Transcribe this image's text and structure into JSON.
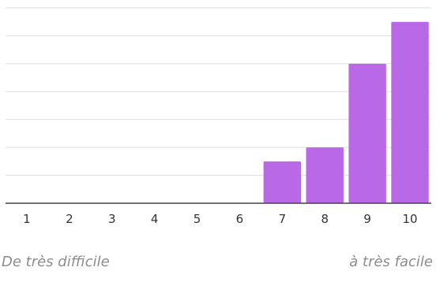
{
  "chart_data": {
    "type": "bar",
    "categories": [
      "1",
      "2",
      "3",
      "4",
      "5",
      "6",
      "7",
      "8",
      "9",
      "10"
    ],
    "values": [
      0,
      0,
      0,
      0,
      0,
      0,
      1.5,
      2,
      5,
      6.5
    ],
    "ylim": [
      0,
      7
    ],
    "grid": true,
    "bar_color": "#b968e6",
    "axis_color": "#444444",
    "grid_color": "#dddddd"
  },
  "scale": {
    "left_label": "De très difficile",
    "right_label": "à très facile"
  }
}
